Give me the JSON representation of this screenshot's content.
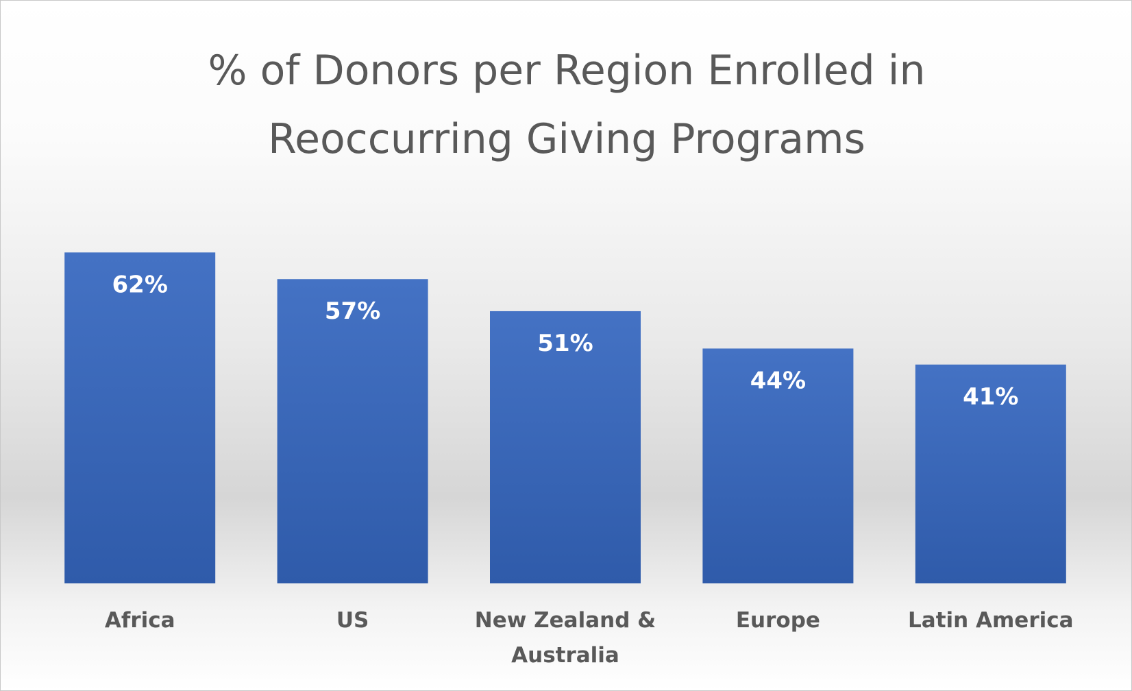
{
  "chart_data": {
    "type": "bar",
    "title_lines": [
      "% of Donors per Region Enrolled in",
      "Reoccurring Giving Programs"
    ],
    "categories": [
      [
        "Africa"
      ],
      [
        "US"
      ],
      [
        "New Zealand &",
        "Australia"
      ],
      [
        "Europe"
      ],
      [
        "Latin America"
      ]
    ],
    "values": [
      62,
      57,
      51,
      44,
      41
    ],
    "value_labels": [
      "62%",
      "57%",
      "51%",
      "44%",
      "41%"
    ],
    "ylim": [
      0,
      70
    ],
    "grid": false,
    "legend": "none",
    "colors": {
      "bar_top": "#4472C4",
      "bar_bottom": "#2F5BAA",
      "title": "#595959",
      "category_text": "#595959",
      "value_text": "#FFFFFF"
    }
  }
}
